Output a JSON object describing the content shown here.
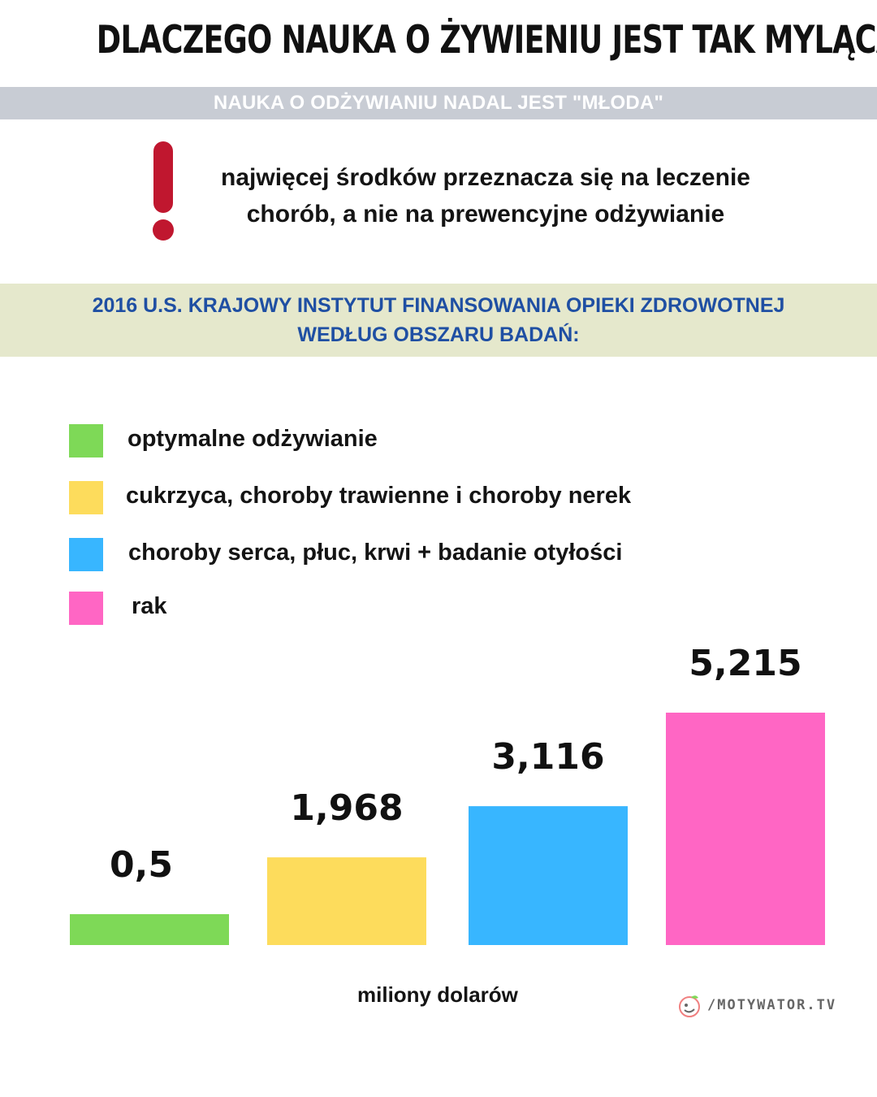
{
  "title": "DLACZEGO NAUKA O ŻYWIENIU JEST TAK MYLĄCA?",
  "subtitle": "NAUKA O ODŻYWIANIU NADAL JEST \"MŁODA\"",
  "note": {
    "icon": "exclamation-icon",
    "line1": "najwięcej środków przeznacza się na leczenie",
    "line2": "chorób, a nie na prewencyjne odżywianie"
  },
  "chart_heading": {
    "line1": "2016 U.S. KRAJOWY INSTYTUT FINANSOWANIA OPIEKI ZDROWOTNEJ",
    "line2": "WEDŁUG OBSZARU BADAŃ:"
  },
  "colors": {
    "accent_red": "#c0172f",
    "heading_blue": "#1f4fa3",
    "band_grey": "#c8ccd4",
    "band_beige": "#e5e8cc"
  },
  "chart_data": {
    "type": "bar",
    "categories": [
      "optymalne odżywianie",
      "cukrzyca, choroby trawienne i choroby nerek",
      "choroby serca, płuc, krwi + badanie otyłości",
      "rak"
    ],
    "values": [
      0.5,
      1968,
      3116,
      5215
    ],
    "value_labels": [
      "0,5",
      "1,968",
      "3,116",
      "5,215"
    ],
    "colors": [
      "#7ed957",
      "#fddc5c",
      "#38b6ff",
      "#ff66c4"
    ],
    "ylabel": "miliony dolarów",
    "ylim": [
      0,
      6000
    ],
    "grid": false,
    "legend_position": "top-left"
  },
  "footer": {
    "unit": "miliony dolarów",
    "brand": "/MOTYWATOR.TV",
    "brand_icon": "motywator-logo-icon"
  }
}
